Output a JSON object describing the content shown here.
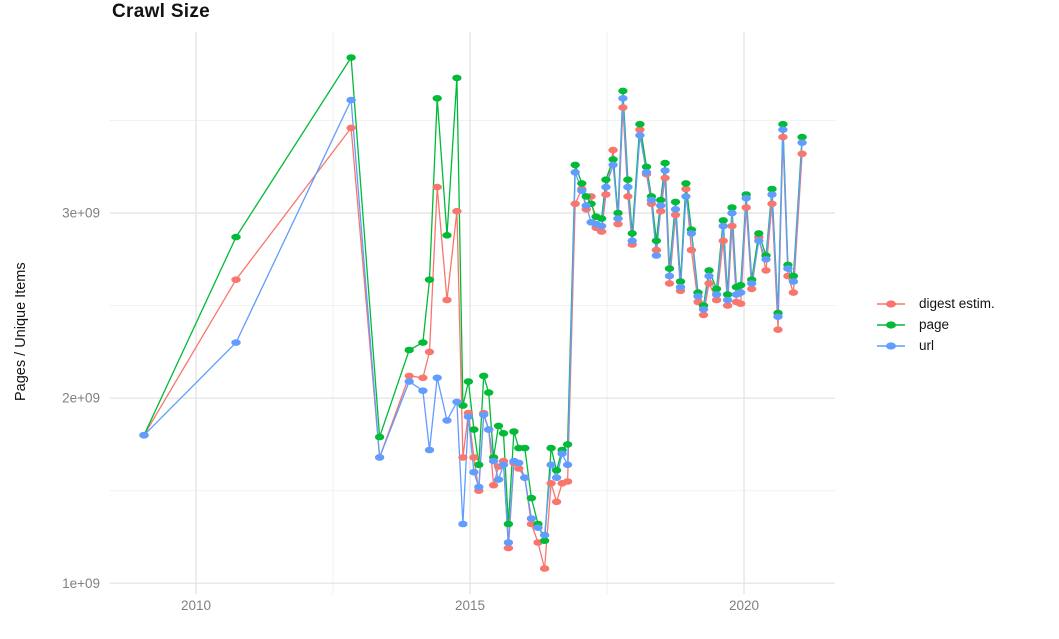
{
  "chart_data": {
    "type": "line",
    "title": "Crawl Size",
    "ylabel": "Pages / Unique Items",
    "y_unit": "1e+09 (values below are billions)",
    "background": "#ffffff",
    "grid": {
      "major_color": "#e4e4e4",
      "minor_color": "#f1f1f1",
      "major_on": true,
      "minor_on": true
    },
    "tick_label_color": "#808080",
    "title_color": "#131313",
    "legend_position": "right",
    "xlim": [
      2008.43,
      2021.66
    ],
    "ylim": [
      0.942,
      3.978
    ],
    "x_axis": {
      "major_ticks": [
        2010,
        2015,
        2020
      ],
      "major_labels": [
        "2010",
        "2015",
        "2020"
      ],
      "minor_ticks": [
        2012.5,
        2017.5
      ]
    },
    "y_axis": {
      "major_values": [
        1,
        2,
        3
      ],
      "major_labels": [
        "1e+09",
        "2e+09",
        "3e+09"
      ],
      "minor_values": [
        1.5,
        2.5,
        3.5
      ]
    },
    "x": [
      2009.05,
      2010.73,
      2012.83,
      2013.35,
      2013.89,
      2014.14,
      2014.26,
      2014.4,
      2014.58,
      2014.76,
      2014.87,
      2014.97,
      2015.07,
      2015.16,
      2015.25,
      2015.34,
      2015.43,
      2015.52,
      2015.61,
      2015.7,
      2015.8,
      2015.89,
      2016.0,
      2016.12,
      2016.24,
      2016.36,
      2016.48,
      2016.58,
      2016.68,
      2016.78,
      2016.92,
      2017.04,
      2017.12,
      2017.21,
      2017.3,
      2017.4,
      2017.48,
      2017.61,
      2017.7,
      2017.79,
      2017.88,
      2017.96,
      2018.1,
      2018.22,
      2018.31,
      2018.4,
      2018.48,
      2018.56,
      2018.64,
      2018.75,
      2018.84,
      2018.94,
      2019.04,
      2019.16,
      2019.26,
      2019.36,
      2019.5,
      2019.62,
      2019.7,
      2019.78,
      2019.86,
      2019.94,
      2020.04,
      2020.14,
      2020.27,
      2020.4,
      2020.51,
      2020.62,
      2020.71,
      2020.8,
      2020.9,
      2021.06
    ],
    "series": [
      {
        "name": "digest estim.",
        "color": "#F8766D",
        "values": [
          1.8,
          2.64,
          3.46,
          1.68,
          2.12,
          2.11,
          2.25,
          3.14,
          2.53,
          3.01,
          1.68,
          1.92,
          1.68,
          1.5,
          1.92,
          1.83,
          1.53,
          1.63,
          1.66,
          1.19,
          1.65,
          1.62,
          1.57,
          1.32,
          1.22,
          1.08,
          1.54,
          1.44,
          1.54,
          1.55,
          3.05,
          3.13,
          3.02,
          3.09,
          2.92,
          2.9,
          3.1,
          3.34,
          2.94,
          3.57,
          3.09,
          2.83,
          3.45,
          3.21,
          3.05,
          2.8,
          3.01,
          3.19,
          2.62,
          2.99,
          2.58,
          3.13,
          2.8,
          2.52,
          2.45,
          2.62,
          2.53,
          2.85,
          2.5,
          2.93,
          2.52,
          2.51,
          3.03,
          2.59,
          2.87,
          2.69,
          3.05,
          2.37,
          3.41,
          2.66,
          2.57,
          3.32
        ]
      },
      {
        "name": "page",
        "color": "#00BA38",
        "values": [
          1.8,
          2.87,
          3.84,
          1.79,
          2.26,
          2.3,
          2.64,
          3.62,
          2.88,
          3.73,
          1.96,
          2.09,
          1.83,
          1.64,
          2.12,
          2.03,
          1.68,
          1.85,
          1.81,
          1.32,
          1.82,
          1.73,
          1.73,
          1.46,
          1.32,
          1.23,
          1.73,
          1.61,
          1.72,
          1.75,
          3.26,
          3.16,
          3.09,
          3.05,
          2.98,
          2.97,
          3.18,
          3.29,
          3.0,
          3.66,
          3.18,
          2.89,
          3.48,
          3.25,
          3.09,
          2.85,
          3.07,
          3.27,
          2.7,
          3.06,
          2.63,
          3.16,
          2.91,
          2.57,
          2.5,
          2.69,
          2.59,
          2.96,
          2.56,
          3.03,
          2.6,
          2.61,
          3.1,
          2.64,
          2.89,
          2.77,
          3.13,
          2.46,
          3.48,
          2.72,
          2.66,
          3.41
        ]
      },
      {
        "name": "url",
        "color": "#619CFF",
        "values": [
          1.8,
          2.3,
          3.61,
          1.68,
          2.09,
          2.04,
          1.72,
          2.11,
          1.88,
          1.98,
          1.32,
          1.9,
          1.6,
          1.52,
          1.91,
          1.83,
          1.66,
          1.56,
          1.64,
          1.22,
          1.66,
          1.65,
          1.57,
          1.35,
          1.3,
          1.26,
          1.64,
          1.57,
          1.7,
          1.64,
          3.22,
          3.12,
          3.04,
          2.95,
          2.94,
          2.93,
          3.14,
          3.26,
          2.97,
          3.62,
          3.14,
          2.85,
          3.42,
          3.22,
          3.07,
          2.77,
          3.04,
          3.23,
          2.66,
          3.02,
          2.6,
          3.09,
          2.89,
          2.55,
          2.48,
          2.66,
          2.56,
          2.93,
          2.53,
          3.0,
          2.56,
          2.57,
          3.08,
          2.62,
          2.85,
          2.75,
          3.1,
          2.44,
          3.45,
          2.7,
          2.63,
          3.38
        ]
      }
    ]
  }
}
